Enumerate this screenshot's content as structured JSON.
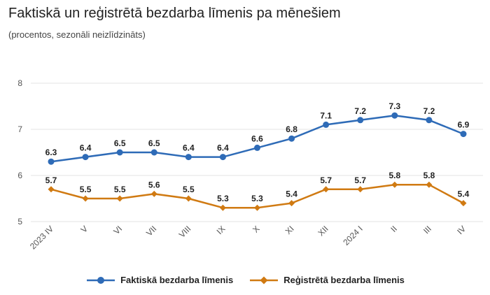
{
  "title": "Faktiskā un reģistrētā bezdarba līmenis pa mēnešiem",
  "subtitle": "(procentos, sezonāli neizlīdzināts)",
  "colors": {
    "series1": "#2e6bb7",
    "series2": "#d07a12",
    "grid": "#e3e3e3",
    "axis": "#555555"
  },
  "chart_data": {
    "type": "line",
    "title": "Faktiskā un reģistrētā bezdarba līmenis pa mēnešiem",
    "subtitle": "(procentos, sezonāli neizlīdzināts)",
    "xlabel": "",
    "ylabel": "",
    "categories": [
      "2023 IV",
      "V",
      "VI",
      "VII",
      "VIII",
      "IX",
      "X",
      "XI",
      "XII",
      "2024 I",
      "II",
      "III",
      "IV"
    ],
    "ylim": [
      5,
      8
    ],
    "yticks": [
      5,
      6,
      7,
      8
    ],
    "grid": true,
    "legend_position": "bottom",
    "series": [
      {
        "name": "Faktiskā bezdarba līmenis",
        "marker": "circle",
        "labels": [
          "6.3",
          "6.4",
          "6.5",
          "6.5",
          "6.4",
          "6.4",
          "6.6",
          "6.8",
          "7.1",
          "7.2",
          "7.3",
          "7.2",
          "6.9"
        ],
        "values": [
          6.3,
          6.4,
          6.5,
          6.5,
          6.4,
          6.4,
          6.6,
          6.8,
          7.1,
          7.2,
          7.3,
          7.2,
          6.9
        ]
      },
      {
        "name": "Reģistrētā bezdarba līmenis",
        "marker": "diamond",
        "labels": [
          "5.7",
          "5.5",
          "5.5",
          "5.6",
          "5.5",
          "5.3",
          "5.3",
          "5.4",
          "5.7",
          "5.7",
          "5.8",
          "5.8",
          "5.4"
        ],
        "values": [
          5.7,
          5.5,
          5.5,
          5.6,
          5.5,
          5.3,
          5.3,
          5.4,
          5.7,
          5.7,
          5.8,
          5.8,
          5.4
        ]
      }
    ]
  }
}
